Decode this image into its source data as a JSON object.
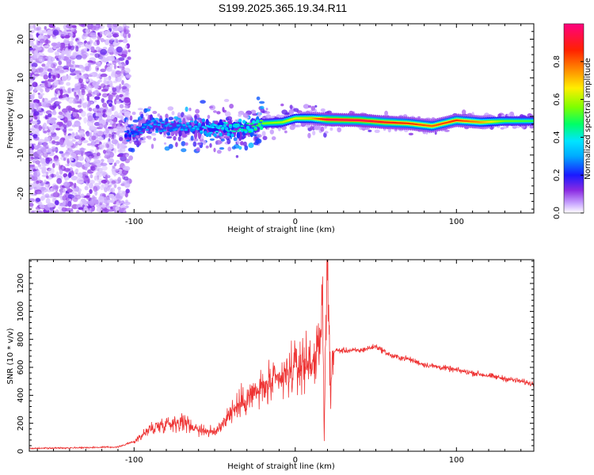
{
  "title": "S199.2025.365.19.34.R11",
  "chart_data": [
    {
      "type": "heatmap",
      "xlabel": "Height of straight line (km)",
      "ylabel": "Frequency (Hz)",
      "xlim": [
        -165,
        148
      ],
      "ylim": [
        -25,
        24
      ],
      "x_ticks": [
        -100,
        0,
        100
      ],
      "y_ticks": [
        -20,
        -10,
        0,
        10,
        20
      ],
      "colorbar": {
        "label": "Normalized spectral amplitude",
        "range": [
          0.0,
          1.0
        ],
        "ticks": [
          0.0,
          0.2,
          0.4,
          0.6,
          0.8
        ],
        "tick_labels": [
          "0.0",
          "0.2",
          "0.4",
          "0.6",
          "0.8"
        ],
        "colors": [
          "#ffffff",
          "#b98cff",
          "#7a00ff",
          "#1a1aff",
          "#00e5ff",
          "#00ff66",
          "#9aff00",
          "#ffee00",
          "#ff8800",
          "#ff2200",
          "#ff0080"
        ]
      },
      "ridge": [
        {
          "x": -105,
          "f": -5,
          "a": 0.25
        },
        {
          "x": -90,
          "f": -2,
          "a": 0.3
        },
        {
          "x": -75,
          "f": -3,
          "a": 0.3
        },
        {
          "x": -60,
          "f": -3,
          "a": 0.35
        },
        {
          "x": -45,
          "f": -3,
          "a": 0.4
        },
        {
          "x": -30,
          "f": -3,
          "a": 0.45
        },
        {
          "x": -20,
          "f": -1.8,
          "a": 0.55
        },
        {
          "x": -8,
          "f": -1.5,
          "a": 0.6
        },
        {
          "x": 0,
          "f": -0.5,
          "a": 0.65
        },
        {
          "x": 10,
          "f": -0.5,
          "a": 0.7
        },
        {
          "x": 20,
          "f": -0.8,
          "a": 0.95
        },
        {
          "x": 40,
          "f": -1,
          "a": 0.95
        },
        {
          "x": 55,
          "f": -1.5,
          "a": 0.9
        },
        {
          "x": 70,
          "f": -1.8,
          "a": 0.85
        },
        {
          "x": 85,
          "f": -2.5,
          "a": 0.8
        },
        {
          "x": 100,
          "f": -1,
          "a": 0.85
        },
        {
          "x": 115,
          "f": -1.5,
          "a": 0.75
        },
        {
          "x": 130,
          "f": -1.2,
          "a": 0.55
        },
        {
          "x": 148,
          "f": -1.2,
          "a": 0.5
        }
      ]
    },
    {
      "type": "line",
      "xlabel": "Height of straight line (km)",
      "ylabel": "SNR (10 * v/v)",
      "xlim": [
        -165,
        148
      ],
      "ylim": [
        0,
        1370
      ],
      "x_ticks": [
        -100,
        0,
        100
      ],
      "y_ticks": [
        0,
        200,
        400,
        600,
        800,
        1000,
        1200
      ],
      "color": "#ee3333",
      "series": [
        {
          "name": "SNR",
          "x": [
            -165,
            -110,
            -100,
            -90,
            -80,
            -70,
            -60,
            -50,
            -40,
            -30,
            -20,
            -10,
            0,
            10,
            15,
            17,
            18,
            19,
            20,
            21,
            22,
            23,
            25,
            30,
            40,
            50,
            60,
            70,
            80,
            90,
            100,
            110,
            120,
            130,
            140,
            148
          ],
          "values": [
            20,
            30,
            70,
            160,
            200,
            210,
            160,
            130,
            280,
            380,
            450,
            500,
            600,
            650,
            700,
            1100,
            80,
            1050,
            1370,
            900,
            300,
            700,
            720,
            720,
            720,
            750,
            680,
            660,
            620,
            600,
            580,
            560,
            540,
            520,
            500,
            480
          ]
        }
      ]
    }
  ]
}
